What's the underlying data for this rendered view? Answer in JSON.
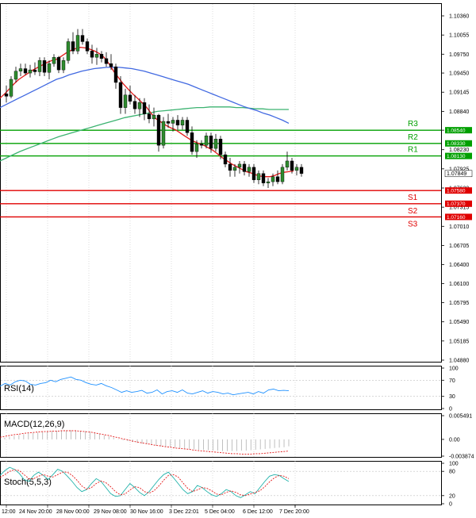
{
  "chart_data": {
    "type": "candlestick",
    "price_axis": {
      "ticks": [
        "1.10360",
        "1.10055",
        "1.09750",
        "1.09450",
        "1.09145",
        "1.08840",
        "1.08540",
        "1.08230",
        "1.07925",
        "1.07620",
        "1.07315",
        "1.07010",
        "1.06705",
        "1.06400",
        "1.06100",
        "1.05795",
        "1.05490",
        "1.05185",
        "1.04880"
      ],
      "range": [
        1.0488,
        1.1036
      ]
    },
    "time_labels": [
      "12:00",
      "24 Nov 20:00",
      "28 Nov 00:00",
      "29 Nov 08:00",
      "30 Nov 16:00",
      "3 Dec 22:01",
      "5 Dec 04:00",
      "6 Dec 12:00",
      "7 Dec 20:00"
    ],
    "levels": [
      {
        "name": "R3",
        "value": 1.0854,
        "label": "1.08540",
        "color": "#00a000"
      },
      {
        "name": "R2",
        "value": 1.0833,
        "label": "1.08330",
        "color": "#00a000"
      },
      {
        "name": "R1",
        "value": 1.0813,
        "label": "1.08130",
        "color": "#00a000"
      },
      {
        "name": "S1",
        "value": 1.0758,
        "label": "1.07580",
        "color": "#e00000"
      },
      {
        "name": "S2",
        "value": 1.0737,
        "label": "1.07370",
        "color": "#e00000"
      },
      {
        "name": "S3",
        "value": 1.0716,
        "label": "1.07160",
        "color": "#e00000"
      }
    ],
    "current_price": {
      "value": 1.0785,
      "label": "1.07849"
    },
    "candles": [
      [
        1.0912,
        1.0925,
        1.0898,
        1.0908
      ],
      [
        1.0908,
        1.094,
        1.0905,
        1.0935
      ],
      [
        1.0935,
        1.0955,
        1.093,
        1.0948
      ],
      [
        1.0948,
        1.096,
        1.094,
        1.0952
      ],
      [
        1.0952,
        1.096,
        1.0942,
        1.0945
      ],
      [
        1.0945,
        1.0958,
        1.0938,
        1.095
      ],
      [
        1.095,
        1.0962,
        1.0942,
        1.0947
      ],
      [
        1.0947,
        1.097,
        1.094,
        1.0965
      ],
      [
        1.0965,
        1.097,
        1.094,
        1.0946
      ],
      [
        1.0946,
        1.0965,
        1.0935,
        1.096
      ],
      [
        1.096,
        1.0975,
        1.0955,
        1.097
      ],
      [
        1.097,
        1.0972,
        1.0945,
        1.095
      ],
      [
        1.095,
        1.097,
        1.0945,
        1.0965
      ],
      [
        1.0965,
        1.1,
        1.096,
        1.0995
      ],
      [
        1.0995,
        1.101,
        1.0975,
        1.098
      ],
      [
        1.098,
        1.1015,
        1.0975,
        1.1005
      ],
      [
        1.1005,
        1.1015,
        1.099,
        1.0995
      ],
      [
        1.0995,
        1.1,
        1.0975,
        1.098
      ],
      [
        1.098,
        1.099,
        1.096,
        1.097
      ],
      [
        1.097,
        1.0985,
        1.0958,
        1.0975
      ],
      [
        1.0975,
        1.098,
        1.0962,
        1.0968
      ],
      [
        1.0968,
        1.0978,
        1.0955,
        1.096
      ],
      [
        1.096,
        1.0975,
        1.095,
        1.0955
      ],
      [
        1.0955,
        1.096,
        1.092,
        1.093
      ],
      [
        1.093,
        1.094,
        1.088,
        1.089
      ],
      [
        1.089,
        1.092,
        1.088,
        1.091
      ],
      [
        1.091,
        1.0925,
        1.0895,
        1.09
      ],
      [
        1.09,
        1.091,
        1.088,
        1.0888
      ],
      [
        1.0888,
        1.0905,
        1.0875,
        1.0898
      ],
      [
        1.0898,
        1.0905,
        1.087,
        1.088
      ],
      [
        1.088,
        1.0895,
        1.0865,
        1.0872
      ],
      [
        1.0872,
        1.089,
        1.086,
        1.0878
      ],
      [
        1.0878,
        1.088,
        1.082,
        1.083
      ],
      [
        1.083,
        1.0875,
        1.0825,
        1.0868
      ],
      [
        1.0868,
        1.088,
        1.0858,
        1.0865
      ],
      [
        1.0865,
        1.0875,
        1.0852,
        1.087
      ],
      [
        1.087,
        1.0878,
        1.0855,
        1.0862
      ],
      [
        1.0862,
        1.0875,
        1.0855,
        1.087
      ],
      [
        1.087,
        1.0875,
        1.0845,
        1.085
      ],
      [
        1.085,
        1.086,
        1.0815,
        1.082
      ],
      [
        1.082,
        1.0838,
        1.081,
        1.0832
      ],
      [
        1.0832,
        1.0838,
        1.0825,
        1.083
      ],
      [
        1.083,
        1.085,
        1.0825,
        1.0845
      ],
      [
        1.0845,
        1.085,
        1.0818,
        1.0825
      ],
      [
        1.0825,
        1.0848,
        1.082,
        1.084
      ],
      [
        1.084,
        1.0845,
        1.0808,
        1.0815
      ],
      [
        1.0815,
        1.082,
        1.0795,
        1.08
      ],
      [
        1.08,
        1.081,
        1.078,
        1.079
      ],
      [
        1.079,
        1.08,
        1.078,
        1.0795
      ],
      [
        1.0795,
        1.0805,
        1.0785,
        1.08
      ],
      [
        1.08,
        1.0805,
        1.0782,
        1.0788
      ],
      [
        1.0788,
        1.08,
        1.078,
        1.0795
      ],
      [
        1.0795,
        1.08,
        1.077,
        1.0775
      ],
      [
        1.0775,
        1.079,
        1.0768,
        1.0785
      ],
      [
        1.0785,
        1.079,
        1.0765,
        1.077
      ],
      [
        1.077,
        1.0778,
        1.0762,
        1.0772
      ],
      [
        1.0772,
        1.0785,
        1.0765,
        1.078
      ],
      [
        1.078,
        1.079,
        1.0768,
        1.0772
      ],
      [
        1.0772,
        1.08,
        1.0768,
        1.0795
      ],
      [
        1.0795,
        1.082,
        1.079,
        1.0805
      ],
      [
        1.0805,
        1.081,
        1.0785,
        1.079
      ],
      [
        1.079,
        1.08,
        1.0782,
        1.0795
      ],
      [
        1.0795,
        1.08,
        1.078,
        1.0785
      ]
    ],
    "ma_red": [
      1.0905,
      1.0912,
      1.092,
      1.0928,
      1.0935,
      1.094,
      1.0945,
      1.095,
      1.0954,
      1.0958,
      1.0962,
      1.0965,
      1.0967,
      1.0972,
      1.0977,
      1.0981,
      1.0984,
      1.0986,
      1.0985,
      1.0983,
      1.098,
      1.0976,
      1.097,
      1.096,
      1.0948,
      1.0938,
      1.0928,
      1.092,
      1.0912,
      1.0905,
      1.0898,
      1.089,
      1.088,
      1.0872,
      1.0867,
      1.0862,
      1.0858,
      1.0855,
      1.085,
      1.0845,
      1.084,
      1.0836,
      1.0833,
      1.083,
      1.0826,
      1.0822,
      1.0816,
      1.081,
      1.0805,
      1.08,
      1.0796,
      1.0792,
      1.0788,
      1.0786,
      1.0783,
      1.0781,
      1.078,
      1.078,
      1.0782,
      1.0785,
      1.0787,
      1.0788,
      1.0789
    ],
    "ma_blue": [
      1.089,
      1.0895,
      1.09,
      1.0905,
      1.091,
      1.0915,
      1.092,
      1.0925,
      1.093,
      1.0935,
      1.0938,
      1.0942,
      1.0945,
      1.0948,
      1.095,
      1.0952,
      1.0953,
      1.0954,
      1.0954,
      1.0954,
      1.0953,
      1.0952,
      1.095,
      1.0948,
      1.0945,
      1.0942,
      1.0939,
      1.0936,
      1.0933,
      1.093,
      1.0927,
      1.0923,
      1.0919,
      1.0915,
      1.0911,
      1.0907,
      1.0903,
      1.0899,
      1.0895,
      1.0891,
      1.0888,
      1.0885,
      1.0881,
      1.0878,
      1.0874,
      1.087,
      1.0865
    ],
    "ma_green": [
      1.0805,
      1.081,
      1.0815,
      1.082,
      1.0824,
      1.0828,
      1.0832,
      1.0836,
      1.084,
      1.0844,
      1.0847,
      1.085,
      1.0853,
      1.0856,
      1.0859,
      1.0862,
      1.0865,
      1.0868,
      1.0871,
      1.0874,
      1.0876,
      1.0878,
      1.088,
      1.0882,
      1.0884,
      1.0885,
      1.0886,
      1.0887,
      1.0888,
      1.0889,
      1.089,
      1.089,
      1.0891,
      1.0891,
      1.0891,
      1.0891,
      1.089,
      1.089,
      1.0889,
      1.0888,
      1.0888,
      1.0887,
      1.0887,
      1.0887,
      1.0887
    ],
    "rsi": {
      "label": "RSI(14)",
      "ticks": [
        "100",
        "70",
        "30",
        "0"
      ],
      "values": [
        55,
        62,
        58,
        66,
        70,
        68,
        60,
        58,
        62,
        64,
        70,
        66,
        72,
        75,
        78,
        72,
        70,
        64,
        60,
        58,
        62,
        56,
        52,
        46,
        40,
        44,
        40,
        42,
        45,
        38,
        40,
        46,
        36,
        42,
        44,
        40,
        46,
        38,
        36,
        40,
        44,
        38,
        42,
        40,
        36,
        38,
        34,
        36,
        38,
        40,
        36,
        42,
        38,
        46,
        48,
        44,
        45,
        44
      ]
    },
    "macd": {
      "label": "MACD(12,26,9)",
      "ticks": [
        "0.005491",
        "0.00",
        "-0.003874"
      ],
      "histogram": [
        0.0002,
        0.0004,
        0.0006,
        0.0008,
        0.001,
        0.0012,
        0.0014,
        0.0015,
        0.0016,
        0.0017,
        0.0018,
        0.0019,
        0.002,
        0.002,
        0.0021,
        0.0021,
        0.0021,
        0.002,
        0.0019,
        0.0018,
        0.0016,
        0.0013,
        0.001,
        0.0007,
        0.0004,
        0.0001,
        -0.0002,
        -0.0004,
        -0.0006,
        -0.0008,
        -0.001,
        -0.0011,
        -0.0013,
        -0.0014,
        -0.0016,
        -0.0017,
        -0.0018,
        -0.0019,
        -0.002,
        -0.0021,
        -0.0022,
        -0.0023,
        -0.0024,
        -0.0024,
        -0.0025,
        -0.0026,
        -0.0026,
        -0.0027,
        -0.0027,
        -0.0027,
        -0.0027,
        -0.0026,
        -0.0026,
        -0.0025,
        -0.0024,
        -0.0023,
        -0.0022,
        -0.0021,
        -0.002,
        -0.0019,
        -0.0018,
        -0.0016
      ],
      "signal": [
        0.0005,
        0.0007,
        0.0009,
        0.0011,
        0.0012,
        0.0014,
        0.0015,
        0.0016,
        0.0017,
        0.0018,
        0.0018,
        0.0019,
        0.0019,
        0.002,
        0.002,
        0.002,
        0.002,
        0.0019,
        0.0018,
        0.0017,
        0.0015,
        0.0013,
        0.0011,
        0.0009,
        0.0006,
        0.0004,
        0.0001,
        -0.0001,
        -0.0004,
        -0.0006,
        -0.0008,
        -0.001,
        -0.0012,
        -0.0014,
        -0.0015,
        -0.0017,
        -0.0018,
        -0.002,
        -0.0021,
        -0.0022,
        -0.0023,
        -0.0025,
        -0.0026,
        -0.0027,
        -0.0028,
        -0.0029,
        -0.003,
        -0.0031,
        -0.0032,
        -0.0033,
        -0.0033,
        -0.0034,
        -0.0034,
        -0.0034,
        -0.0033,
        -0.0033,
        -0.0032,
        -0.0031,
        -0.003,
        -0.0029,
        -0.0028,
        -0.0027
      ]
    },
    "stoch": {
      "label": "Stoch(5,5,3)",
      "ticks": [
        "100",
        "80",
        "20",
        "0"
      ],
      "main": [
        70,
        82,
        90,
        85,
        75,
        60,
        55,
        70,
        78,
        70,
        60,
        72,
        85,
        80,
        68,
        55,
        40,
        30,
        35,
        50,
        62,
        55,
        40,
        25,
        18,
        20,
        35,
        50,
        40,
        28,
        20,
        30,
        45,
        60,
        72,
        78,
        65,
        50,
        35,
        25,
        30,
        45,
        40,
        30,
        22,
        18,
        25,
        35,
        30,
        20,
        15,
        22,
        30,
        25,
        40,
        55,
        68,
        72,
        70,
        62,
        55
      ],
      "signal": [
        65,
        72,
        80,
        84,
        82,
        72,
        62,
        62,
        68,
        72,
        68,
        66,
        72,
        78,
        78,
        70,
        58,
        44,
        36,
        40,
        50,
        56,
        52,
        42,
        30,
        22,
        24,
        34,
        42,
        40,
        30,
        26,
        32,
        44,
        58,
        70,
        72,
        66,
        52,
        38,
        30,
        34,
        40,
        38,
        32,
        24,
        22,
        28,
        32,
        28,
        22,
        20,
        24,
        28,
        32,
        42,
        54,
        64,
        70,
        68,
        62
      ]
    }
  }
}
